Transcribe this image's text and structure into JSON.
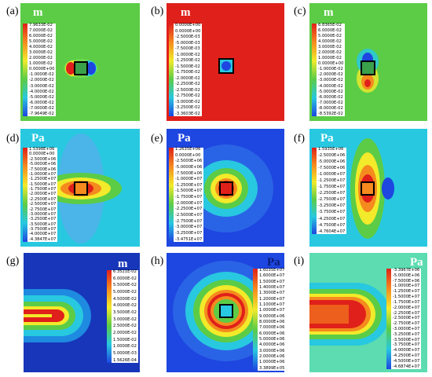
{
  "panels": [
    {
      "label": "(a)",
      "unit": "m",
      "legend": [
        "7.9633E-02",
        "7.0000E-02",
        "6.0000E-02",
        "5.0000E-02",
        "4.0000E-02",
        "3.0000E-02",
        "2.0000E-02",
        "1.0000E-02",
        "0.0000E+00",
        "-1.0000E-02",
        "-2.0000E-02",
        "-3.0000E-02",
        "-4.0000E-02",
        "-5.0000E-02",
        "-6.0000E-02",
        "-7.0000E-02",
        "-7.9649E-02"
      ]
    },
    {
      "label": "(b)",
      "unit": "m",
      "legend": [
        "0.0000E+00",
        "0.0000E+00",
        "-2.5000E-03",
        "-5.0000E-03",
        "-7.5000E-03",
        "-1.0000E-02",
        "-1.2500E-02",
        "-1.5000E-02",
        "-1.7500E-02",
        "-2.0000E-02",
        "-2.2500E-02",
        "-2.5000E-02",
        "-2.7500E-02",
        "-3.0000E-02",
        "-3.2500E-02",
        "-3.3603E-02"
      ]
    },
    {
      "label": "(c)",
      "unit": "m",
      "legend": [
        "6.8365E-02",
        "6.0000E-02",
        "5.0000E-02",
        "4.0000E-02",
        "3.0000E-02",
        "2.0000E-02",
        "1.0000E-02",
        "0.0000E+00",
        "-1.0000E-02",
        "-2.0000E-02",
        "-3.0000E-02",
        "-4.0000E-02",
        "-5.0000E-02",
        "-6.0000E-02",
        "-7.0000E-02",
        "-8.0000E-02",
        "-8.5392E-02"
      ]
    },
    {
      "label": "(d)",
      "unit": "Pa",
      "legend": [
        "1.5398E+06",
        "0.0000E+00",
        "-2.5000E+06",
        "-5.0000E+06",
        "-7.5000E+06",
        "-1.0000E+07",
        "-1.2500E+07",
        "-1.5000E+07",
        "-1.7500E+07",
        "-2.0000E+07",
        "-2.2500E+07",
        "-2.5000E+07",
        "-2.7500E+07",
        "-3.0000E+07",
        "-3.2500E+07",
        "-3.5000E+07",
        "-3.7500E+07",
        "-4.0000E+07",
        "-4.3847E+07"
      ]
    },
    {
      "label": "(e)",
      "unit": "Pa",
      "legend": [
        "1.2635E+06",
        "0.0000E+00",
        "-2.5000E+06",
        "-5.0000E+06",
        "-7.5000E+06",
        "-1.0000E+07",
        "-1.2500E+07",
        "-1.5000E+07",
        "-1.7500E+07",
        "-2.0000E+07",
        "-2.2500E+07",
        "-2.5000E+07",
        "-2.7500E+07",
        "-3.0000E+07",
        "-3.2500E+07",
        "-3.4751E+07"
      ]
    },
    {
      "label": "(f)",
      "unit": "Pa",
      "legend": [
        "1.5935E+06",
        "-2.5000E+06",
        "-5.0000E+06",
        "-7.5000E+06",
        "-1.0000E+07",
        "-1.2500E+07",
        "-1.7500E+07",
        "-2.2500E+07",
        "-2.7500E+07",
        "-3.2500E+07",
        "-3.7500E+07",
        "-4.2500E+07",
        "-4.7500E+07",
        "-4.7604E+07"
      ]
    },
    {
      "label": "(g)",
      "unit": "m",
      "legend": [
        "6.3521E-02",
        "6.0000E-02",
        "5.5000E-02",
        "5.0000E-02",
        "4.5000E-02",
        "4.0000E-02",
        "3.5000E-02",
        "3.0000E-02",
        "2.5000E-02",
        "2.0000E-02",
        "1.5000E-02",
        "1.0000E-02",
        "5.0000E-03",
        "1.5626E-04"
      ]
    },
    {
      "label": "(h)",
      "unit": "Pa",
      "legend": [
        "1.6035E+07",
        "1.6000E+07",
        "1.5000E+07",
        "1.4000E+07",
        "1.3000E+07",
        "1.2000E+07",
        "1.1000E+07",
        "1.0000E+07",
        "9.0000E+06",
        "8.0000E+06",
        "7.0000E+06",
        "6.0000E+06",
        "5.0000E+06",
        "4.0000E+06",
        "3.0000E+06",
        "2.0000E+06",
        "1.0000E+06",
        "3.3899E+05"
      ]
    },
    {
      "label": "(i)",
      "unit": "Pa",
      "legend": [
        "-3.3967E+06",
        "-5.0000E+06",
        "-7.5000E+06",
        "-1.0000E+07",
        "-1.2500E+07",
        "-1.5000E+07",
        "-1.7500E+07",
        "-2.0000E+07",
        "-2.2500E+07",
        "-2.5000E+07",
        "-2.7500E+07",
        "-3.0000E+07",
        "-3.2500E+07",
        "-3.5000E+07",
        "-3.7500E+07",
        "-4.0000E+07",
        "-4.2500E+07",
        "-4.5000E+07",
        "-4.6874E+07"
      ]
    }
  ],
  "colors": {
    "red": "#e0201a",
    "orange": "#f58a1e",
    "yellow": "#f2ea2a",
    "green": "#5ccc46",
    "cyan": "#28c8e0",
    "blue": "#1e46e0",
    "darkblue": "#12299a",
    "unit_text": "#ffffff",
    "unit_text_dark": "#0a1e78"
  }
}
